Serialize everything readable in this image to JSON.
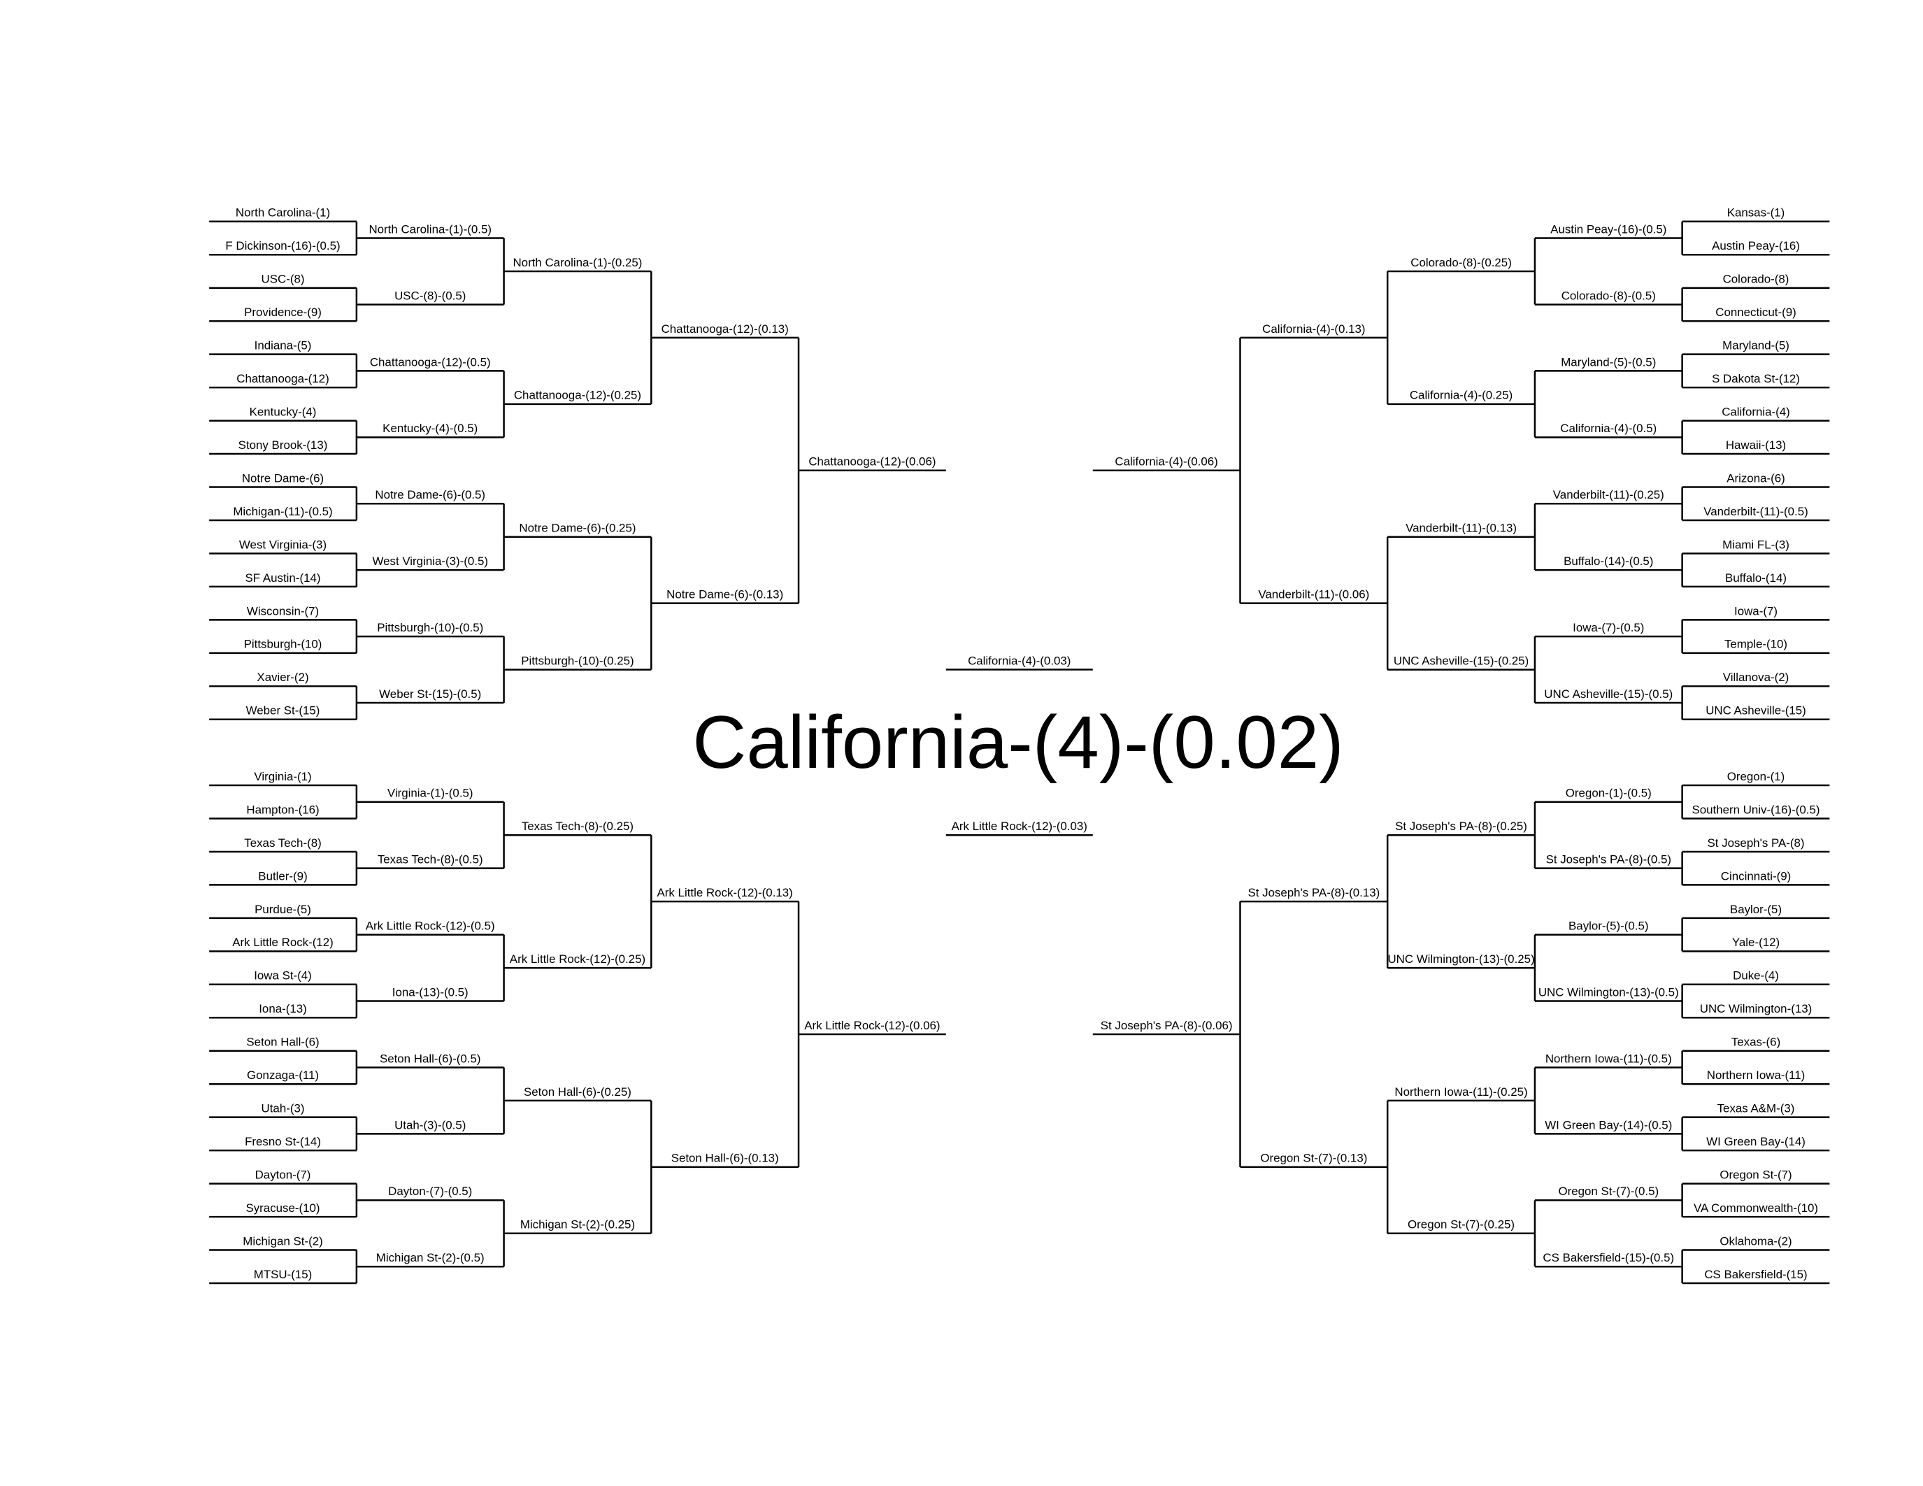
{
  "regions": [
    {
      "rounds": [
        [
          "North Carolina-(1)",
          "F Dickinson-(16)-(0.5)",
          "USC-(8)",
          "Providence-(9)",
          "Indiana-(5)",
          "Chattanooga-(12)",
          "Kentucky-(4)",
          "Stony Brook-(13)",
          "Notre Dame-(6)",
          "Michigan-(11)-(0.5)",
          "West Virginia-(3)",
          "SF Austin-(14)",
          "Wisconsin-(7)",
          "Pittsburgh-(10)",
          "Xavier-(2)",
          "Weber St-(15)"
        ],
        [
          "North Carolina-(1)-(0.5)",
          "USC-(8)-(0.5)",
          "Chattanooga-(12)-(0.5)",
          "Kentucky-(4)-(0.5)",
          "Notre Dame-(6)-(0.5)",
          "West Virginia-(3)-(0.5)",
          "Pittsburgh-(10)-(0.5)",
          "Weber St-(15)-(0.5)"
        ],
        [
          "North Carolina-(1)-(0.25)",
          "Chattanooga-(12)-(0.25)",
          "Notre Dame-(6)-(0.25)",
          "Pittsburgh-(10)-(0.25)"
        ],
        [
          "Chattanooga-(12)-(0.13)",
          "Notre Dame-(6)-(0.13)"
        ],
        [
          "Chattanooga-(12)-(0.06)"
        ]
      ]
    },
    {
      "rounds": [
        [
          "Virginia-(1)",
          "Hampton-(16)",
          "Texas Tech-(8)",
          "Butler-(9)",
          "Purdue-(5)",
          "Ark Little Rock-(12)",
          "Iowa St-(4)",
          "Iona-(13)",
          "Seton Hall-(6)",
          "Gonzaga-(11)",
          "Utah-(3)",
          "Fresno St-(14)",
          "Dayton-(7)",
          "Syracuse-(10)",
          "Michigan St-(2)",
          "MTSU-(15)"
        ],
        [
          "Virginia-(1)-(0.5)",
          "Texas Tech-(8)-(0.5)",
          "Ark Little Rock-(12)-(0.5)",
          "Iona-(13)-(0.5)",
          "Seton Hall-(6)-(0.5)",
          "Utah-(3)-(0.5)",
          "Dayton-(7)-(0.5)",
          "Michigan St-(2)-(0.5)"
        ],
        [
          "Texas Tech-(8)-(0.25)",
          "Ark Little Rock-(12)-(0.25)",
          "Seton Hall-(6)-(0.25)",
          "Michigan St-(2)-(0.25)"
        ],
        [
          "Ark Little Rock-(12)-(0.13)",
          "Seton Hall-(6)-(0.13)"
        ],
        [
          "Ark Little Rock-(12)-(0.06)"
        ]
      ]
    },
    {
      "rounds": [
        [
          "Kansas-(1)",
          "Austin Peay-(16)",
          "Colorado-(8)",
          "Connecticut-(9)",
          "Maryland-(5)",
          "S Dakota St-(12)",
          "California-(4)",
          "Hawaii-(13)",
          "Arizona-(6)",
          "Vanderbilt-(11)-(0.5)",
          "Miami FL-(3)",
          "Buffalo-(14)",
          "Iowa-(7)",
          "Temple-(10)",
          "Villanova-(2)",
          "UNC Asheville-(15)"
        ],
        [
          "Austin Peay-(16)-(0.5)",
          "Colorado-(8)-(0.5)",
          "Maryland-(5)-(0.5)",
          "California-(4)-(0.5)",
          "Vanderbilt-(11)-(0.25)",
          "Buffalo-(14)-(0.5)",
          "Iowa-(7)-(0.5)",
          "UNC Asheville-(15)-(0.5)"
        ],
        [
          "Colorado-(8)-(0.25)",
          "California-(4)-(0.25)",
          "Vanderbilt-(11)-(0.13)",
          "UNC Asheville-(15)-(0.25)"
        ],
        [
          "California-(4)-(0.13)",
          "Vanderbilt-(11)-(0.06)"
        ],
        [
          "California-(4)-(0.06)"
        ]
      ]
    },
    {
      "rounds": [
        [
          "Oregon-(1)",
          "Southern Univ-(16)-(0.5)",
          "St Joseph's PA-(8)",
          "Cincinnati-(9)",
          "Baylor-(5)",
          "Yale-(12)",
          "Duke-(4)",
          "UNC Wilmington-(13)",
          "Texas-(6)",
          "Northern Iowa-(11)",
          "Texas A&M-(3)",
          "WI Green Bay-(14)",
          "Oregon St-(7)",
          "VA Commonwealth-(10)",
          "Oklahoma-(2)",
          "CS Bakersfield-(15)"
        ],
        [
          "Oregon-(1)-(0.5)",
          "St Joseph's PA-(8)-(0.5)",
          "Baylor-(5)-(0.5)",
          "UNC Wilmington-(13)-(0.5)",
          "Northern Iowa-(11)-(0.5)",
          "WI Green Bay-(14)-(0.5)",
          "Oregon St-(7)-(0.5)",
          "CS Bakersfield-(15)-(0.5)"
        ],
        [
          "St Joseph's PA-(8)-(0.25)",
          "UNC Wilmington-(13)-(0.25)",
          "Northern Iowa-(11)-(0.25)",
          "Oregon St-(7)-(0.25)"
        ],
        [
          "St Joseph's PA-(8)-(0.13)",
          "Oregon St-(7)-(0.13)"
        ],
        [
          "St Joseph's PA-(8)-(0.06)"
        ]
      ]
    }
  ],
  "final_four": [
    "California-(4)-(0.03)",
    "Ark Little Rock-(12)-(0.03)"
  ],
  "champion": "California-(4)-(0.02)"
}
